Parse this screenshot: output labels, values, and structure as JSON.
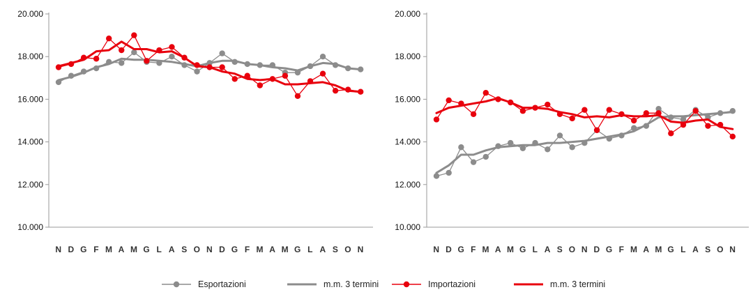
{
  "colors": {
    "exports": "#8c8c8c",
    "imports": "#e8000d",
    "axis": "#9a9a9a"
  },
  "legend": [
    {
      "label": "Esportazioni",
      "color": "#8c8c8c",
      "marker": true
    },
    {
      "label": "m.m. 3 termini",
      "color": "#8c8c8c",
      "marker": false
    },
    {
      "label": "Importazioni",
      "color": "#e8000d",
      "marker": true
    },
    {
      "label": "m.m. 3 termini",
      "color": "#e8000d",
      "marker": false
    }
  ],
  "chart_data": [
    {
      "type": "line",
      "categories": [
        "N",
        "D",
        "G",
        "F",
        "M",
        "A",
        "M",
        "G",
        "L",
        "A",
        "S",
        "O",
        "N",
        "D",
        "G",
        "F",
        "M",
        "A",
        "M",
        "G",
        "L",
        "A",
        "S",
        "O",
        "N"
      ],
      "ylim": [
        10000,
        20000
      ],
      "yticks": [
        "10.000",
        "12.000",
        "14.000",
        "16.000",
        "18.000",
        "20.000"
      ],
      "ytick_values": [
        10000,
        12000,
        14000,
        16000,
        18000,
        20000
      ],
      "grid": false,
      "series": [
        {
          "name": "Esportazioni",
          "color": "#8c8c8c",
          "marker": true,
          "values": [
            16800,
            17100,
            17300,
            17450,
            17750,
            17700,
            18200,
            17750,
            17700,
            18000,
            17600,
            17300,
            17700,
            18150,
            17750,
            17650,
            17600,
            17600,
            17250,
            17250,
            17550,
            18000,
            17600,
            17450,
            17400
          ]
        },
        {
          "name": "m.m. 3 termini",
          "color": "#8c8c8c",
          "marker": false,
          "values": [
            16900,
            17050,
            17250,
            17500,
            17650,
            17900,
            17850,
            17850,
            17800,
            17750,
            17650,
            17550,
            17700,
            17800,
            17800,
            17650,
            17600,
            17500,
            17450,
            17350,
            17550,
            17700,
            17650,
            17450,
            17400
          ]
        },
        {
          "name": "Importazioni",
          "color": "#e8000d",
          "marker": true,
          "values": [
            17500,
            17650,
            17950,
            17900,
            18850,
            18300,
            19000,
            17800,
            18300,
            18450,
            17950,
            17600,
            17500,
            17500,
            16950,
            17100,
            16650,
            16950,
            17100,
            16150,
            16850,
            17200,
            16400,
            16450,
            16350
          ]
        },
        {
          "name": "m.m. 3 termini",
          "color": "#e8000d",
          "marker": false,
          "values": [
            17550,
            17700,
            17850,
            18250,
            18300,
            18700,
            18350,
            18350,
            18200,
            18250,
            17950,
            17550,
            17500,
            17300,
            17200,
            16950,
            16900,
            16950,
            16700,
            16700,
            16750,
            16800,
            16650,
            16400,
            16350
          ]
        }
      ]
    },
    {
      "type": "line",
      "categories": [
        "N",
        "D",
        "G",
        "F",
        "M",
        "A",
        "M",
        "G",
        "L",
        "A",
        "S",
        "O",
        "N",
        "D",
        "G",
        "F",
        "M",
        "A",
        "M",
        "G",
        "L",
        "A",
        "S",
        "O",
        "N"
      ],
      "ylim": [
        10000,
        20000
      ],
      "yticks": [
        "10.000",
        "12.000",
        "14.000",
        "16.000",
        "18.000",
        "20.000"
      ],
      "ytick_values": [
        10000,
        12000,
        14000,
        16000,
        18000,
        20000
      ],
      "grid": false,
      "series": [
        {
          "name": "Esportazioni",
          "color": "#8c8c8c",
          "marker": true,
          "values": [
            12400,
            12550,
            13750,
            13050,
            13300,
            13800,
            13950,
            13700,
            13950,
            13650,
            14300,
            13750,
            13950,
            14550,
            14150,
            14300,
            14650,
            14750,
            15550,
            15150,
            15050,
            15500,
            15150,
            15350,
            15450
          ]
        },
        {
          "name": "m.m. 3 termini",
          "color": "#8c8c8c",
          "marker": false,
          "values": [
            12550,
            12900,
            13400,
            13400,
            13600,
            13750,
            13800,
            13850,
            13850,
            13950,
            13950,
            14000,
            14050,
            14150,
            14250,
            14350,
            14500,
            14800,
            15150,
            15200,
            15200,
            15250,
            15300,
            15350,
            15400
          ]
        },
        {
          "name": "Importazioni",
          "color": "#e8000d",
          "marker": true,
          "values": [
            15050,
            15950,
            15800,
            15300,
            16300,
            16000,
            15850,
            15450,
            15600,
            15750,
            15300,
            15100,
            15500,
            14550,
            15500,
            15300,
            15000,
            15350,
            15350,
            14400,
            14800,
            15450,
            14750,
            14800,
            14250
          ]
        },
        {
          "name": "m.m. 3 termini",
          "color": "#e8000d",
          "marker": false,
          "values": [
            15350,
            15600,
            15700,
            15800,
            15900,
            16050,
            15850,
            15600,
            15600,
            15550,
            15400,
            15300,
            15150,
            15200,
            15150,
            15250,
            15200,
            15200,
            15250,
            14950,
            14900,
            15000,
            15050,
            14700,
            14600
          ]
        }
      ]
    }
  ]
}
